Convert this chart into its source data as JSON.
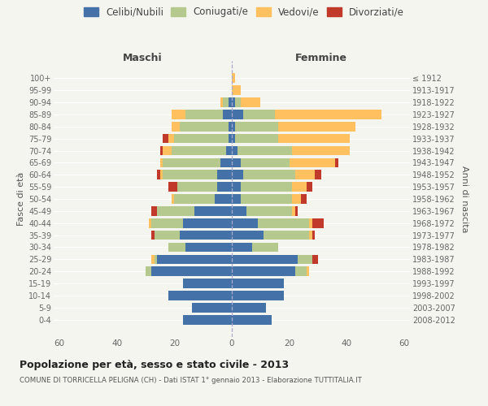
{
  "age_groups": [
    "100+",
    "95-99",
    "90-94",
    "85-89",
    "80-84",
    "75-79",
    "70-74",
    "65-69",
    "60-64",
    "55-59",
    "50-54",
    "45-49",
    "40-44",
    "35-39",
    "30-34",
    "25-29",
    "20-24",
    "15-19",
    "10-14",
    "5-9",
    "0-4"
  ],
  "birth_years": [
    "≤ 1912",
    "1913-1917",
    "1918-1922",
    "1923-1927",
    "1928-1932",
    "1933-1937",
    "1938-1942",
    "1943-1947",
    "1948-1952",
    "1953-1957",
    "1958-1962",
    "1963-1967",
    "1968-1972",
    "1973-1977",
    "1978-1982",
    "1983-1987",
    "1988-1992",
    "1993-1997",
    "1998-2002",
    "2003-2007",
    "2008-2012"
  ],
  "males": {
    "celibi": [
      0,
      0,
      1,
      3,
      1,
      1,
      2,
      4,
      5,
      5,
      6,
      13,
      17,
      18,
      16,
      26,
      28,
      17,
      22,
      14,
      17
    ],
    "coniugati": [
      0,
      0,
      2,
      13,
      17,
      19,
      19,
      20,
      19,
      14,
      14,
      13,
      11,
      9,
      6,
      1,
      2,
      0,
      0,
      0,
      0
    ],
    "vedovi": [
      0,
      0,
      1,
      5,
      3,
      2,
      3,
      1,
      1,
      0,
      1,
      0,
      1,
      0,
      0,
      1,
      0,
      0,
      0,
      0,
      0
    ],
    "divorziati": [
      0,
      0,
      0,
      0,
      0,
      2,
      1,
      0,
      1,
      3,
      0,
      2,
      0,
      1,
      0,
      0,
      0,
      0,
      0,
      0,
      0
    ]
  },
  "females": {
    "nubili": [
      0,
      0,
      1,
      4,
      1,
      1,
      2,
      3,
      4,
      3,
      3,
      5,
      9,
      11,
      7,
      23,
      22,
      18,
      18,
      12,
      14
    ],
    "coniugate": [
      0,
      0,
      2,
      11,
      15,
      15,
      19,
      17,
      18,
      18,
      18,
      16,
      18,
      16,
      9,
      5,
      4,
      0,
      0,
      0,
      0
    ],
    "vedove": [
      1,
      3,
      7,
      37,
      27,
      25,
      20,
      16,
      7,
      5,
      3,
      1,
      1,
      1,
      0,
      0,
      1,
      0,
      0,
      0,
      0
    ],
    "divorziate": [
      0,
      0,
      0,
      0,
      0,
      0,
      0,
      1,
      2,
      2,
      2,
      1,
      4,
      1,
      0,
      2,
      0,
      0,
      0,
      0,
      0
    ]
  },
  "colors": {
    "celibi": "#4472a8",
    "coniugati": "#b5c98e",
    "vedovi": "#ffc060",
    "divorziati": "#c0392b"
  },
  "xlim": 62,
  "title": "Popolazione per età, sesso e stato civile - 2013",
  "subtitle": "COMUNE DI TORRICELLA PELIGNA (CH) - Dati ISTAT 1° gennaio 2013 - Elaborazione TUTTITALIA.IT",
  "xlabel_left": "Maschi",
  "xlabel_right": "Femmine",
  "ylabel_left": "Fasce di età",
  "ylabel_right": "Anni di nascita",
  "legend_labels": [
    "Celibi/Nubili",
    "Coniugati/e",
    "Vedovi/e",
    "Divorziati/e"
  ],
  "bg_color": "#f5f5f0"
}
